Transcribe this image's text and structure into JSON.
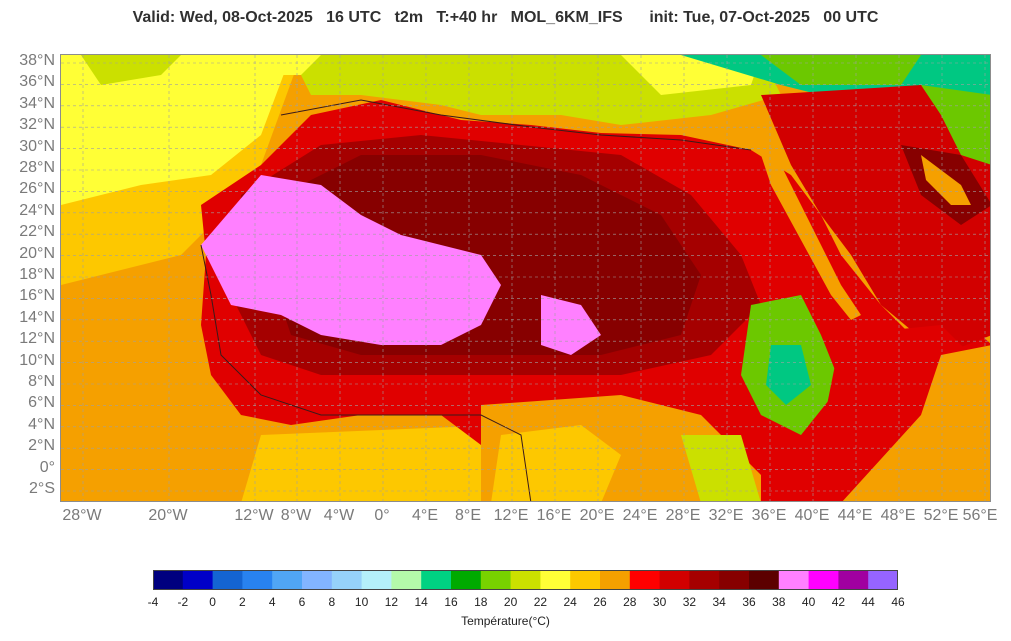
{
  "header": {
    "title": "Valid: Wed, 08-Oct-2025   16 UTC   t2m   T:+40 hr   MOL_6KM_IFS      init: Tue, 07-Oct-2025   00 UTC"
  },
  "map": {
    "variable": "t2m",
    "model": "MOL_6KM_IFS",
    "lat_labels": [
      "38°N",
      "36°N",
      "34°N",
      "32°N",
      "30°N",
      "28°N",
      "26°N",
      "24°N",
      "22°N",
      "20°N",
      "18°N",
      "16°N",
      "14°N",
      "12°N",
      "10°N",
      "8°N",
      "6°N",
      "4°N",
      "2°N",
      "0°",
      "2°S"
    ],
    "lon_labels": [
      "28°W",
      "20°W",
      "12°W",
      "8°W",
      "4°W",
      "0°",
      "4°E",
      "8°E",
      "12°E",
      "16°E",
      "20°E",
      "24°E",
      "28°E",
      "32°E",
      "36°E",
      "40°E",
      "44°E",
      "48°E",
      "52°E",
      "56°E"
    ],
    "grid_lines": true,
    "fill_colors": {
      "ocean_warm": "#f5a000",
      "ocean_cool": "#fdc800",
      "ocean_temperate": "#ffff36",
      "med_sea": "#cbe000",
      "land_hot": "#e00000",
      "land_very_hot": "#c00000",
      "land_extreme": "#870000",
      "land_max": "#5c0000",
      "land_pink": "#ff80ff",
      "highland_green": "#6cc800",
      "highland_teal": "#00c882",
      "coast": "#7a0000",
      "border": "#1a1a1a"
    }
  },
  "colorbar": {
    "title": "Température(°C)",
    "tick_labels": [
      "-4",
      "-2",
      "0",
      "2",
      "4",
      "6",
      "8",
      "10",
      "12",
      "14",
      "16",
      "18",
      "20",
      "22",
      "24",
      "26",
      "28",
      "30",
      "32",
      "34",
      "36",
      "38",
      "40",
      "42",
      "44",
      "46"
    ],
    "colors": [
      "#00007f",
      "#0000c8",
      "#1464d2",
      "#2882f0",
      "#50a5f5",
      "#82b4ff",
      "#96d2fa",
      "#b4f0fa",
      "#b4faaa",
      "#00d282",
      "#00aa00",
      "#78d200",
      "#cbe000",
      "#ffff36",
      "#fdc800",
      "#f5a000",
      "#ff0000",
      "#d20000",
      "#a50000",
      "#870000",
      "#5c0000",
      "#ff80ff",
      "#ff00ff",
      "#a000a0",
      "#9664ff"
    ]
  }
}
